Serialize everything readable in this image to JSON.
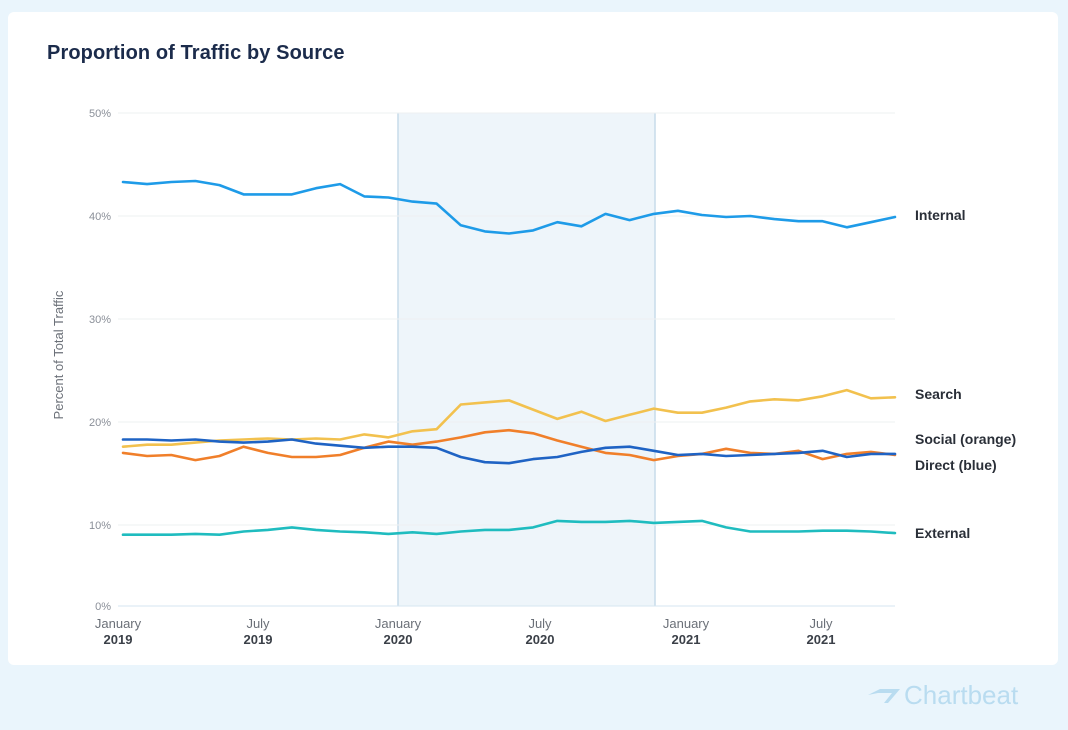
{
  "chart_data": {
    "type": "line",
    "title": "Proportion of Traffic by Source",
    "ylabel": "Percent of Total Traffic",
    "xlabel": "",
    "ylim": [
      0,
      50
    ],
    "yticks": [
      "0%",
      "10%",
      "20%",
      "30%",
      "40%",
      "50%"
    ],
    "grid": true,
    "legend": "right, inline series labels",
    "xticks": [
      {
        "month": "January",
        "year": "2019"
      },
      {
        "month": "July",
        "year": "2019"
      },
      {
        "month": "January",
        "year": "2020"
      },
      {
        "month": "July",
        "year": "2020"
      },
      {
        "month": "January",
        "year": "2021"
      },
      {
        "month": "July",
        "year": "2021"
      }
    ],
    "highlight": {
      "from": "January 2020",
      "to": "December 2020",
      "color": "#eef5fa"
    },
    "x_range": [
      "January 2019",
      "September 2021"
    ],
    "series": [
      {
        "name": "Internal",
        "color": "#1e9be8",
        "values": [
          43.3,
          43.1,
          43.3,
          43.4,
          43.0,
          42.1,
          42.1,
          42.1,
          42.7,
          43.1,
          41.9,
          41.8,
          41.4,
          41.2,
          39.1,
          38.5,
          38.3,
          38.6,
          39.4,
          39.0,
          40.2,
          39.6,
          40.2,
          40.5,
          40.1,
          39.9,
          40.0,
          39.7,
          39.5,
          39.5,
          38.9,
          39.4,
          39.9
        ]
      },
      {
        "name": "Search",
        "color": "#f2c14e",
        "values": [
          17.6,
          17.8,
          17.8,
          18.0,
          18.2,
          18.3,
          18.4,
          18.3,
          18.4,
          18.3,
          18.8,
          18.5,
          19.1,
          19.3,
          21.7,
          21.9,
          22.1,
          21.2,
          20.3,
          21.0,
          20.1,
          20.7,
          21.3,
          20.9,
          20.9,
          21.4,
          22.0,
          22.2,
          22.1,
          22.5,
          23.1,
          22.3,
          22.4
        ]
      },
      {
        "name": "Social (orange)",
        "color": "#f07f2a",
        "values": [
          17.0,
          16.7,
          16.8,
          16.3,
          16.7,
          17.6,
          17.0,
          16.6,
          16.6,
          16.8,
          17.5,
          18.1,
          17.8,
          18.1,
          18.5,
          19.0,
          19.2,
          18.9,
          18.2,
          17.6,
          17.0,
          16.8,
          16.3,
          16.7,
          16.9,
          17.4,
          17.0,
          16.9,
          17.2,
          16.4,
          16.9,
          17.1,
          16.8
        ]
      },
      {
        "name": "Direct (blue)",
        "color": "#1f63c4",
        "values": [
          18.3,
          18.3,
          18.2,
          18.3,
          18.1,
          18.0,
          18.1,
          18.3,
          17.9,
          17.7,
          17.5,
          17.6,
          17.6,
          17.5,
          16.6,
          16.1,
          16.0,
          16.4,
          16.6,
          17.1,
          17.5,
          17.6,
          17.2,
          16.8,
          16.9,
          16.7,
          16.8,
          16.9,
          17.0,
          17.2,
          16.6,
          16.9,
          16.9
        ]
      },
      {
        "name": "External",
        "color": "#1fbcbf",
        "values": [
          8.8,
          8.8,
          8.8,
          8.9,
          8.8,
          9.2,
          9.4,
          9.7,
          9.4,
          9.2,
          9.1,
          8.9,
          9.1,
          8.9,
          9.2,
          9.4,
          9.4,
          9.7,
          10.4,
          10.3,
          10.3,
          10.4,
          10.2,
          10.3,
          10.4,
          9.7,
          9.2,
          9.2,
          9.2,
          9.3,
          9.3,
          9.2,
          9.0
        ]
      }
    ]
  },
  "brand": {
    "name": "Chartbeat"
  }
}
